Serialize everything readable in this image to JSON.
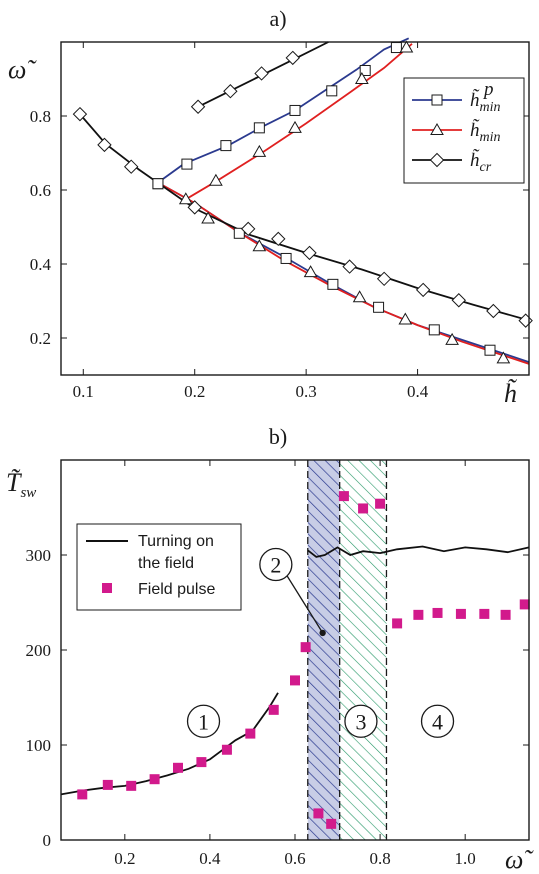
{
  "chart_data": [
    {
      "panel": "a)",
      "type": "line",
      "xlabel": "h̃",
      "ylabel": "ω̃",
      "xlim": [
        0.08,
        0.5
      ],
      "ylim": [
        0.1,
        1.0
      ],
      "xticks": [
        0.1,
        0.2,
        0.3,
        0.4
      ],
      "yticks": [
        0.2,
        0.4,
        0.6,
        0.8
      ],
      "xtick_labels": [
        "0.1",
        "0.2",
        "0.3",
        "0.4"
      ],
      "ytick_labels": [
        "0.2",
        "0.4",
        "0.6",
        "0.8"
      ],
      "legend_position": "upper-right",
      "series": [
        {
          "legend_base": "h̃",
          "legend_sub": "min",
          "legend_sup": "p",
          "color": "#2b3a8f",
          "marker": "square",
          "branches": [
            {
              "x": [
                0.167,
                0.19,
                0.23,
                0.26,
                0.29,
                0.315,
                0.345,
                0.37,
                0.392
              ],
              "y": [
                0.62,
                0.67,
                0.72,
                0.77,
                0.815,
                0.865,
                0.925,
                0.98,
                1.01
              ],
              "markers": [
                [
                  0.167,
                  0.617
                ],
                [
                  0.193,
                  0.67
                ],
                [
                  0.228,
                  0.72
                ],
                [
                  0.258,
                  0.768
                ],
                [
                  0.29,
                  0.815
                ],
                [
                  0.323,
                  0.868
                ],
                [
                  0.353,
                  0.923
                ],
                [
                  0.381,
                  0.985
                ]
              ]
            },
            {
              "x": [
                0.167,
                0.2,
                0.24,
                0.28,
                0.32,
                0.36,
                0.4,
                0.44,
                0.48,
                0.5
              ],
              "y": [
                0.62,
                0.565,
                0.485,
                0.42,
                0.35,
                0.285,
                0.235,
                0.195,
                0.155,
                0.135
              ],
              "markers": [
                [
                  0.167,
                  0.617
                ],
                [
                  0.24,
                  0.483
                ],
                [
                  0.282,
                  0.415
                ],
                [
                  0.324,
                  0.345
                ],
                [
                  0.365,
                  0.283
                ],
                [
                  0.415,
                  0.222
                ],
                [
                  0.465,
                  0.167
                ]
              ]
            }
          ]
        },
        {
          "legend_base": "h̃",
          "legend_sub": "min",
          "legend_sup": "",
          "color": "#e02020",
          "marker": "triangle",
          "branches": [
            {
              "x": [
                0.192,
                0.22,
                0.26,
                0.3,
                0.34,
                0.37,
                0.395
              ],
              "y": [
                0.575,
                0.625,
                0.7,
                0.78,
                0.865,
                0.93,
                0.995
              ],
              "markers": [
                [
                  0.219,
                  0.625
                ],
                [
                  0.258,
                  0.703
                ],
                [
                  0.29,
                  0.768
                ],
                [
                  0.35,
                  0.9
                ],
                [
                  0.39,
                  0.985
                ]
              ]
            },
            {
              "x": [
                0.167,
                0.2,
                0.24,
                0.28,
                0.32,
                0.36,
                0.4,
                0.44,
                0.48,
                0.5
              ],
              "y": [
                0.62,
                0.565,
                0.485,
                0.41,
                0.345,
                0.285,
                0.235,
                0.19,
                0.15,
                0.13
              ],
              "markers": [
                [
                  0.192,
                  0.575
                ],
                [
                  0.212,
                  0.523
                ],
                [
                  0.258,
                  0.448
                ],
                [
                  0.304,
                  0.378
                ],
                [
                  0.348,
                  0.31
                ],
                [
                  0.389,
                  0.25
                ],
                [
                  0.431,
                  0.195
                ],
                [
                  0.477,
                  0.145
                ]
              ]
            }
          ]
        },
        {
          "legend_base": "h̃",
          "legend_sub": "cr",
          "legend_sup": "",
          "color": "#111111",
          "marker": "diamond",
          "branches": [
            {
              "x": [
                0.097,
                0.12,
                0.15,
                0.2,
                0.25,
                0.3,
                0.35,
                0.4,
                0.45,
                0.497
              ],
              "y": [
                0.805,
                0.725,
                0.655,
                0.55,
                0.478,
                0.43,
                0.385,
                0.335,
                0.29,
                0.25
              ],
              "markers": [
                [
                  0.097,
                  0.805
                ],
                [
                  0.119,
                  0.722
                ],
                [
                  0.143,
                  0.663
                ],
                [
                  0.2,
                  0.553
                ],
                [
                  0.248,
                  0.495
                ],
                [
                  0.275,
                  0.468
                ],
                [
                  0.303,
                  0.43
                ],
                [
                  0.339,
                  0.393
                ],
                [
                  0.37,
                  0.36
                ],
                [
                  0.405,
                  0.33
                ],
                [
                  0.437,
                  0.302
                ],
                [
                  0.468,
                  0.273
                ],
                [
                  0.497,
                  0.247
                ]
              ]
            },
            {
              "x": [
                0.203,
                0.23,
                0.26,
                0.29,
                0.32
              ],
              "y": [
                0.825,
                0.865,
                0.91,
                0.955,
                1.0
              ],
              "markers": [
                [
                  0.203,
                  0.825
                ],
                [
                  0.232,
                  0.867
                ],
                [
                  0.26,
                  0.915
                ],
                [
                  0.288,
                  0.957
                ]
              ]
            }
          ]
        }
      ]
    },
    {
      "panel": "b)",
      "type": "scatter",
      "xlabel": "ω̃",
      "ylabel": "T̃",
      "ylabel_sub": "sw",
      "xlim": [
        0.05,
        1.15
      ],
      "ylim": [
        0,
        400
      ],
      "xticks": [
        0.2,
        0.4,
        0.6,
        0.8,
        1.0
      ],
      "yticks": [
        0,
        100,
        200,
        300
      ],
      "xtick_labels": [
        "0.2",
        "0.4",
        "0.6",
        "0.8",
        "1.0"
      ],
      "ytick_labels": [
        "0",
        "100",
        "200",
        "300"
      ],
      "legend_position": "upper-left",
      "series": [
        {
          "name": "Turning on the field",
          "color": "#111111",
          "type": "line",
          "branches": [
            {
              "x": [
                0.05,
                0.1,
                0.15,
                0.2,
                0.25,
                0.3,
                0.35,
                0.4,
                0.43,
                0.46,
                0.5,
                0.54,
                0.56
              ],
              "y": [
                48,
                52,
                55,
                57,
                62,
                68,
                75,
                85,
                95,
                105,
                115,
                140,
                155
              ]
            },
            {
              "x": [
                0.63,
                0.65,
                0.67,
                0.7,
                0.73,
                0.76,
                0.8,
                0.84,
                0.9,
                0.95,
                1.0,
                1.05,
                1.1,
                1.15
              ],
              "y": [
                305,
                298,
                300,
                308,
                300,
                304,
                302,
                306,
                309,
                304,
                308,
                306,
                303,
                308
              ]
            }
          ]
        },
        {
          "name": "Field pulse",
          "color": "#d21a8c",
          "type": "scatter",
          "x": [
            0.1,
            0.16,
            0.215,
            0.27,
            0.325,
            0.38,
            0.44,
            0.495,
            0.55,
            0.6,
            0.625,
            0.655,
            0.685,
            0.715,
            0.76,
            0.8,
            0.84,
            0.89,
            0.935,
            0.99,
            1.045,
            1.095,
            1.14
          ],
          "y": [
            48,
            58,
            57,
            64,
            76,
            82,
            95,
            112,
            137,
            168,
            203,
            28,
            17,
            362,
            349,
            354,
            228,
            237,
            239,
            238,
            238,
            237,
            248
          ]
        }
      ],
      "regions": [
        {
          "label": "1",
          "x_range": [
            0.05,
            0.63
          ],
          "pattern": "none",
          "label_at": [
            0.385,
            125
          ]
        },
        {
          "label": "2",
          "x_range": [
            0.63,
            0.705
          ],
          "pattern": "hatch-blue",
          "label_at": [
            0.555,
            290
          ],
          "pointer_to": [
            0.665,
            218
          ]
        },
        {
          "label": "3",
          "x_range": [
            0.705,
            0.815
          ],
          "pattern": "hatch-green",
          "label_at": [
            0.755,
            125
          ]
        },
        {
          "label": "4",
          "x_range": [
            0.815,
            1.15
          ],
          "pattern": "none",
          "label_at": [
            0.935,
            125
          ]
        }
      ]
    }
  ]
}
